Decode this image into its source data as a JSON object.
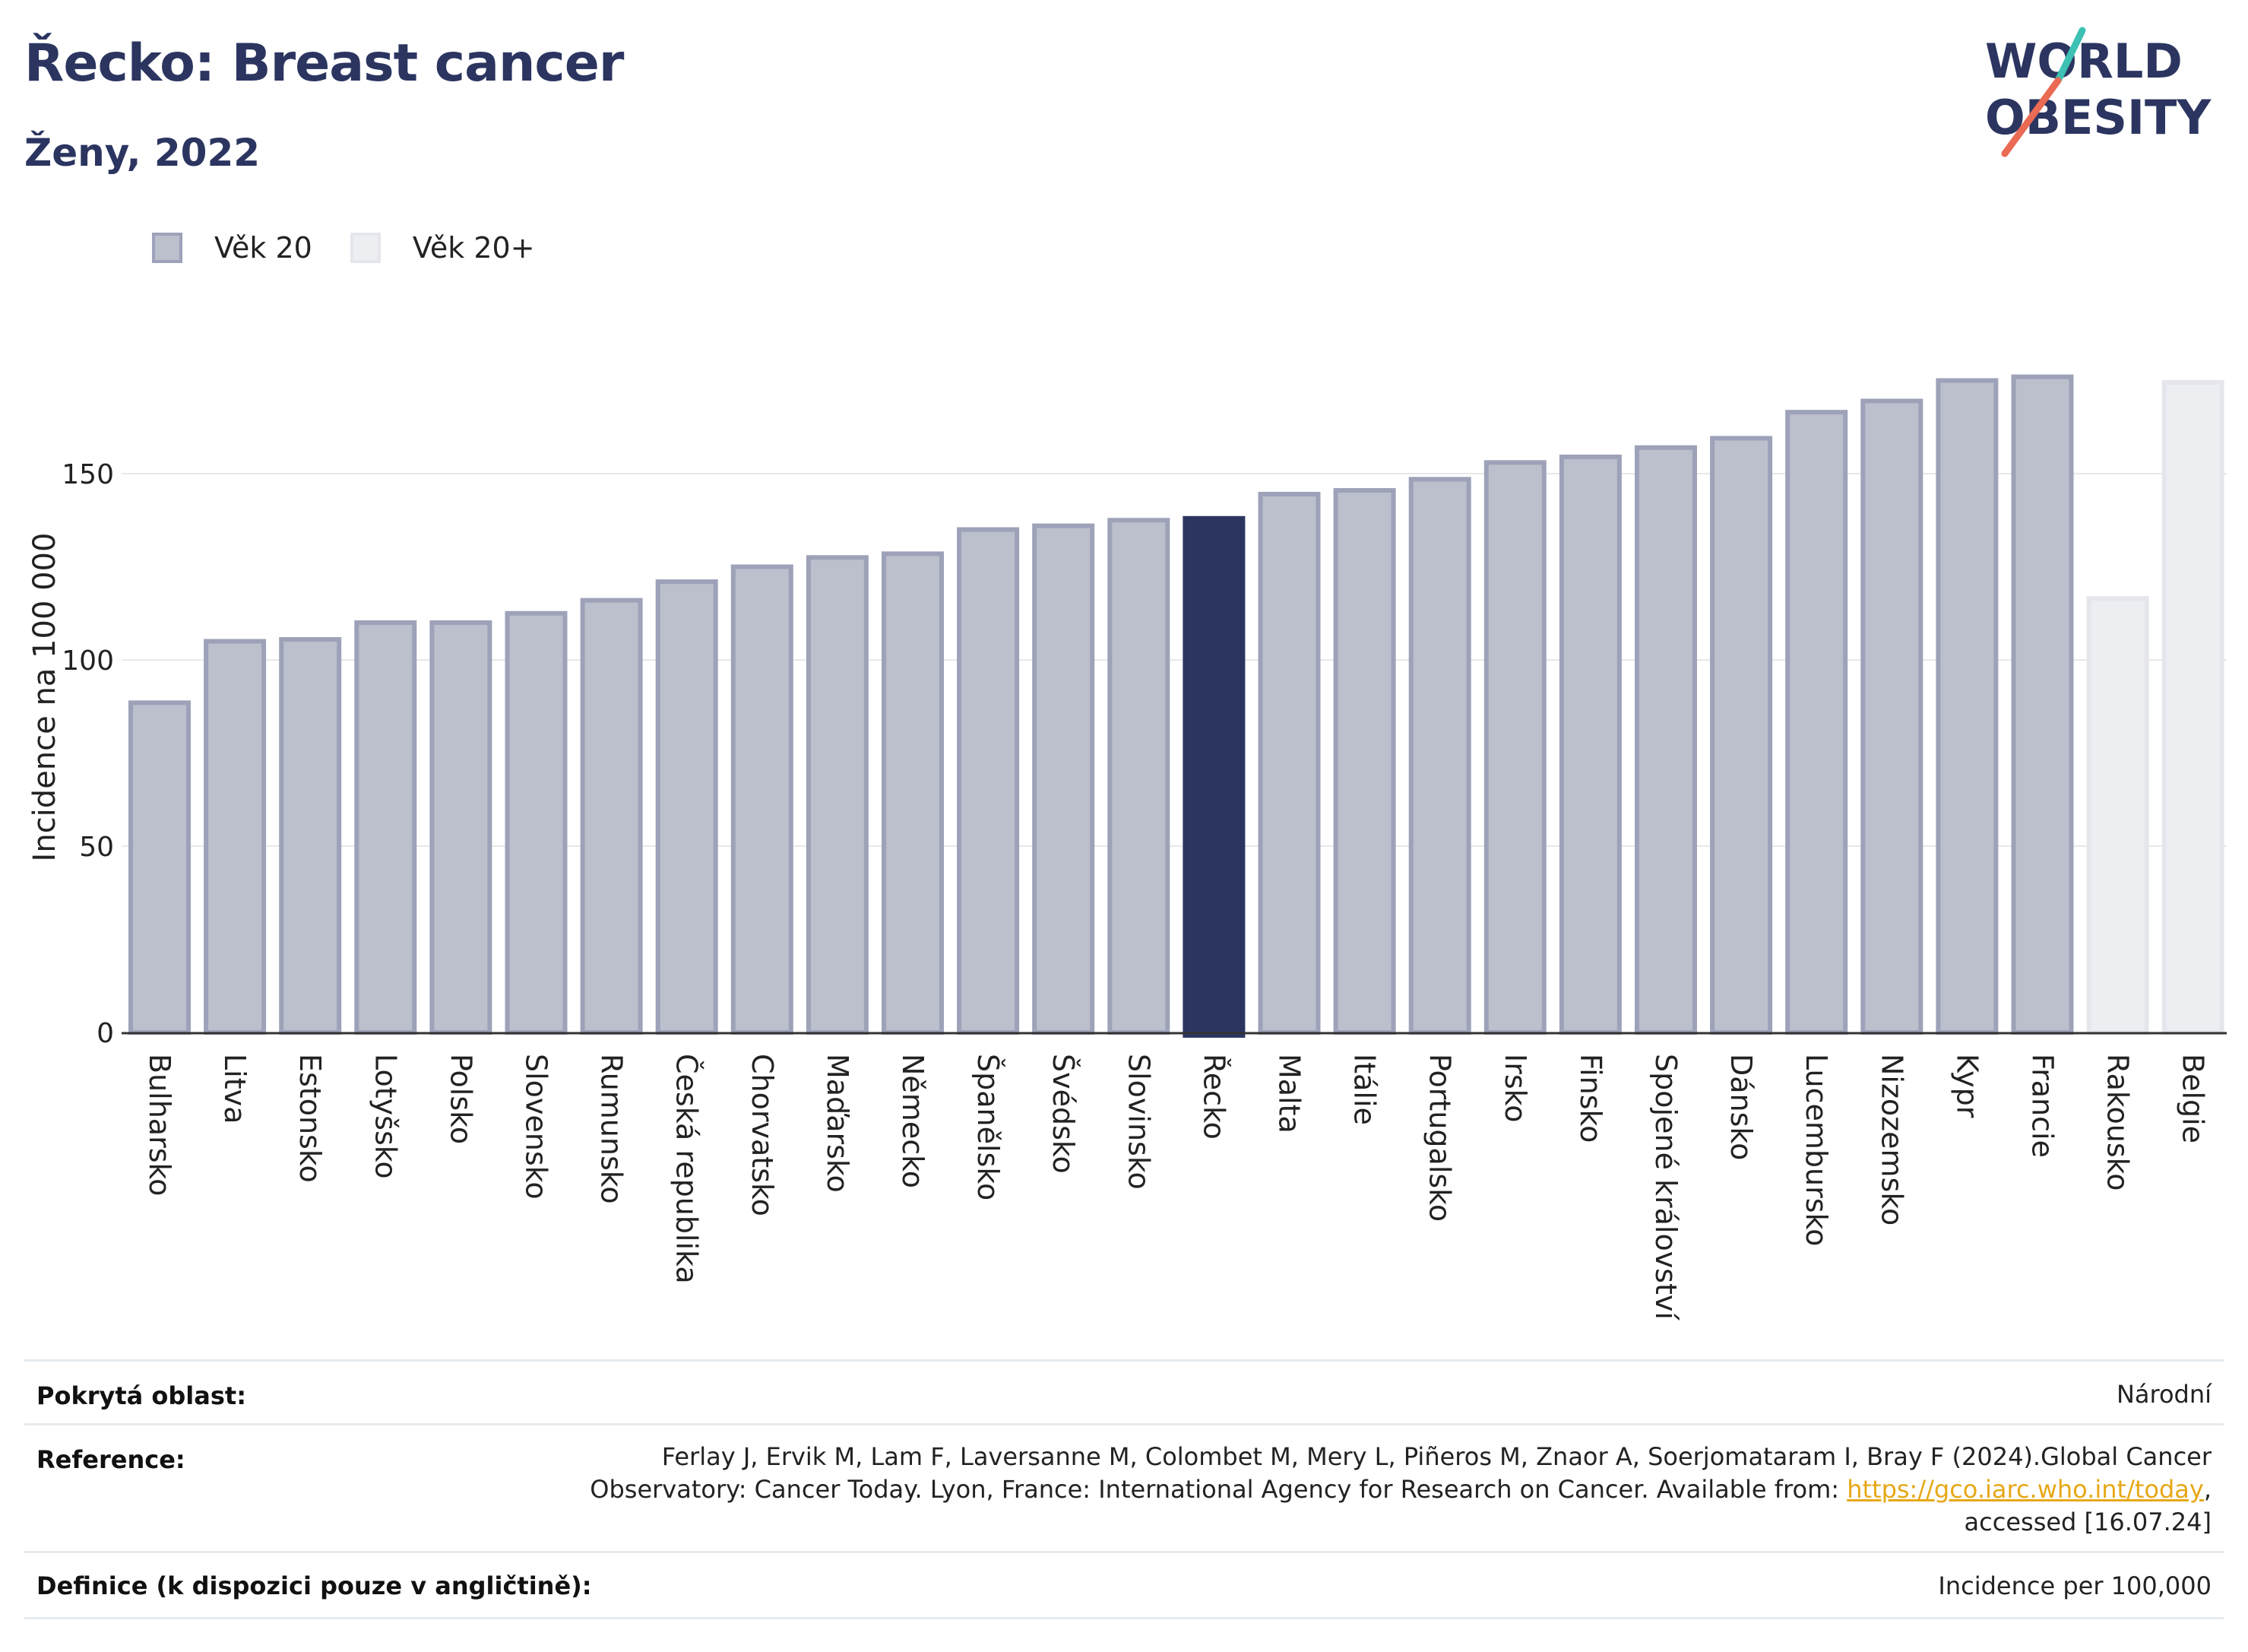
{
  "header": {
    "title": "Řecko: Breast cancer",
    "subtitle": "Ženy, 2022"
  },
  "logo": {
    "line1": "WORLD",
    "line2": "OBESITY"
  },
  "legend": {
    "items": [
      {
        "label": "Věk 20",
        "color": "#bcbfcc"
      },
      {
        "label": "Věk 20+",
        "color": "#eceef2"
      }
    ]
  },
  "colors": {
    "bar_default": "#bcbfcc",
    "bar_default_border": "#9da2b9",
    "bar_highlight": "#2b3560",
    "bar_light": "#eceef2",
    "bar_light_border": "#e4e6ec",
    "title": "#2b3560"
  },
  "chart_data": {
    "type": "bar",
    "ylabel": "Incidence na 100 000",
    "ylim": [
      0,
      180
    ],
    "yticks": [
      0,
      50,
      100,
      150
    ],
    "grid": true,
    "categories": [
      "Bulharsko",
      "Litva",
      "Estonsko",
      "Lotyšsko",
      "Polsko",
      "Slovensko",
      "Rumunsko",
      "Česká republika",
      "Chorvatsko",
      "Maďarsko",
      "Německo",
      "Španělsko",
      "Švédsko",
      "Slovinsko",
      "Řecko",
      "Malta",
      "Itálie",
      "Portugalsko",
      "Irsko",
      "Finsko",
      "Spojené království",
      "Dánsko",
      "Lucembursko",
      "Nizozemsko",
      "Kypr",
      "Francie",
      "Rakousko",
      "Belgie"
    ],
    "values": [
      88.5,
      105,
      105.5,
      110,
      110,
      112.5,
      116,
      121,
      125,
      127.5,
      128.5,
      135,
      136,
      137.5,
      138,
      144.5,
      145.5,
      148.5,
      153,
      154.5,
      157,
      159.5,
      166.5,
      169.5,
      175,
      176,
      116.5,
      174.5
    ],
    "groups": [
      "Věk 20",
      "Věk 20",
      "Věk 20",
      "Věk 20",
      "Věk 20",
      "Věk 20",
      "Věk 20",
      "Věk 20",
      "Věk 20",
      "Věk 20",
      "Věk 20",
      "Věk 20",
      "Věk 20",
      "Věk 20",
      "Věk 20",
      "Věk 20",
      "Věk 20",
      "Věk 20",
      "Věk 20",
      "Věk 20",
      "Věk 20",
      "Věk 20",
      "Věk 20",
      "Věk 20",
      "Věk 20",
      "Věk 20",
      "Věk 20+",
      "Věk 20+"
    ],
    "highlight": "Řecko"
  },
  "meta": {
    "coverage_label": "Pokrytá oblast:",
    "coverage_value": "Národní",
    "reference_label": "Reference:",
    "reference_line1": "Ferlay J, Ervik M, Lam F, Laversanne M, Colombet M, Mery L, Piñeros M, Znaor A, Soerjomataram I, Bray F (2024).Global Cancer",
    "reference_line2_prefix": "Observatory: Cancer Today. Lyon, France: International Agency for Research on Cancer. Available from: ",
    "reference_link": "https://gco.iarc.who.int/today",
    "reference_line2_suffix": ",",
    "reference_line3": "accessed [16.07.24]",
    "definition_label": "Definice (k dispozici pouze v angličtině):",
    "definition_value": "Incidence per 100,000"
  }
}
